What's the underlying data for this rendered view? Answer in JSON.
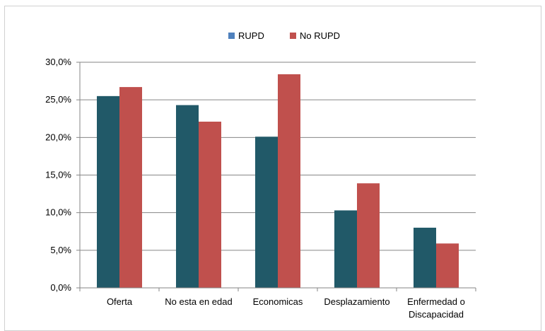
{
  "chart_data": {
    "type": "bar",
    "categories": [
      "Oferta",
      "No esta en edad",
      "Economicas",
      "Desplazamiento",
      "Enfermedad o Discapacidad"
    ],
    "category_lines": [
      [
        "Oferta"
      ],
      [
        "No esta en edad"
      ],
      [
        "Economicas"
      ],
      [
        "Desplazamiento"
      ],
      [
        "Enfermedad o",
        "Discapacidad"
      ]
    ],
    "series": [
      {
        "name": "RUPD",
        "values": [
          25.5,
          24.3,
          20.1,
          10.3,
          8.0
        ],
        "bar_color": "#215968",
        "legend_color": "#4f81bd"
      },
      {
        "name": "No RUPD",
        "values": [
          26.7,
          22.1,
          28.4,
          13.9,
          5.9
        ],
        "bar_color": "#c0504d",
        "legend_color": "#c0504d"
      }
    ],
    "y_ticks": [
      "0,0%",
      "5,0%",
      "10,0%",
      "15,0%",
      "20,0%",
      "25,0%",
      "30,0%"
    ],
    "ylim": [
      0,
      30
    ],
    "grid": true,
    "legend_position": "top-center",
    "title": "",
    "xlabel": "",
    "ylabel": ""
  }
}
